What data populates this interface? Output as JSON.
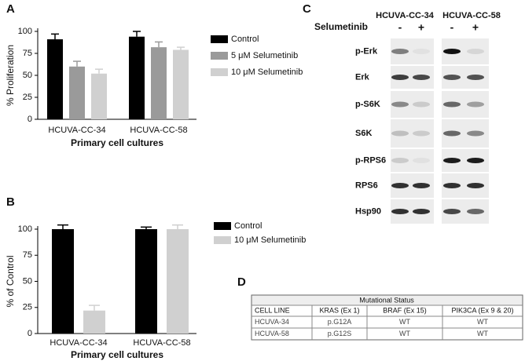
{
  "chart_data": [
    {
      "type": "bar",
      "panel_label": "A",
      "ylabel": "% Proliferation",
      "xlabel": "Primary cell cultures",
      "categories": [
        "HCUVA-CC-34",
        "HCUVA-CC-58"
      ],
      "series": [
        {
          "name": "Control",
          "color": "#000000",
          "values": [
            91,
            94
          ],
          "errors": [
            6,
            6
          ]
        },
        {
          "name": "5 μM Selumetinib",
          "color": "#9a9a9a",
          "values": [
            60,
            82
          ],
          "errors": [
            6,
            6
          ]
        },
        {
          "name": "10 μM Selumetinib",
          "color": "#d0d0d0",
          "values": [
            52,
            79
          ],
          "errors": [
            5,
            3
          ]
        }
      ],
      "ylim": [
        0,
        100
      ],
      "yticks": [
        0,
        25,
        50,
        75,
        100
      ]
    },
    {
      "type": "bar",
      "panel_label": "B",
      "ylabel": "% of Control",
      "xlabel": "Primary cell cultures",
      "categories": [
        "HCUVA-CC-34",
        "HCUVA-CC-58"
      ],
      "series": [
        {
          "name": "Control",
          "color": "#000000",
          "values": [
            100,
            100
          ],
          "errors": [
            4,
            2
          ]
        },
        {
          "name": "10 μM Selumetinib",
          "color": "#d0d0d0",
          "values": [
            22,
            100
          ],
          "errors": [
            5,
            4
          ]
        }
      ],
      "ylim": [
        0,
        100
      ],
      "yticks": [
        0,
        25,
        50,
        75,
        100
      ]
    }
  ],
  "blot": {
    "panel_label": "C",
    "cell_lines": [
      "HCUVA-CC-34",
      "HCUVA-CC-58"
    ],
    "treatment": "Selumetinib",
    "lanes": [
      "-",
      "+",
      "-",
      "+"
    ],
    "proteins": [
      "p-Erk",
      "Erk",
      "p-S6K",
      "S6K",
      "p-RPS6",
      "RPS6",
      "Hsp90"
    ]
  },
  "table": {
    "panel_label": "D",
    "title": "Mutational Status",
    "header": [
      "CELL LINE",
      "KRAS (Ex 1)",
      "BRAF (Ex 15)",
      "PIK3CA (Ex 9 & 20)"
    ],
    "rows": [
      [
        "HCUVA-34",
        "p.G12A",
        "WT",
        "WT"
      ],
      [
        "HCUVA-58",
        "p.G12S",
        "WT",
        "WT"
      ]
    ]
  }
}
